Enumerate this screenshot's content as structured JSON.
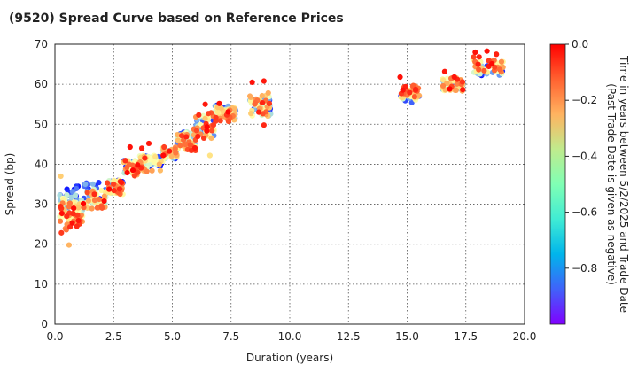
{
  "chart_data": {
    "type": "scatter",
    "title": "(9520)   Spread Curve based on Reference Prices",
    "xlabel": "Duration (years)",
    "ylabel": "Spread (bp)",
    "xlim": [
      0.0,
      20.0
    ],
    "ylim": [
      0,
      70
    ],
    "x_ticks": [
      0.0,
      2.5,
      5.0,
      7.5,
      10.0,
      12.5,
      15.0,
      17.5,
      20.0
    ],
    "x_tick_labels": [
      "0.0",
      "2.5",
      "5.0",
      "7.5",
      "10.0",
      "12.5",
      "15.0",
      "17.5",
      "20.0"
    ],
    "y_ticks": [
      0,
      10,
      20,
      30,
      40,
      50,
      60,
      70
    ],
    "y_tick_labels": [
      "0",
      "10",
      "20",
      "30",
      "40",
      "50",
      "60",
      "70"
    ],
    "grid": true,
    "colorbar": {
      "label_line1": "Time in years between 5/2/2025 and Trade Date",
      "label_line2": "(Past Trade Date is given as negative)",
      "range": [
        -1.0,
        0.0
      ],
      "ticks": [
        0.0,
        -0.2,
        -0.4,
        -0.6,
        -0.8
      ],
      "tick_labels": [
        "0.0",
        "−0.2",
        "−0.4",
        "−0.6",
        "−0.8"
      ],
      "colormap": "rainbow"
    },
    "clusters": [
      {
        "x": [
          0.2,
          0.7
        ],
        "y_new": [
          22,
          30
        ],
        "y_old": [
          30,
          34
        ]
      },
      {
        "x": [
          0.7,
          1.2
        ],
        "y_new": [
          24,
          29
        ],
        "y_old": [
          29,
          35
        ]
      },
      {
        "x": [
          1.2,
          2.2
        ],
        "y_new": [
          28,
          33
        ],
        "y_old": [
          31,
          36
        ]
      },
      {
        "x": [
          2.2,
          2.9
        ],
        "y_new": [
          32,
          36
        ],
        "y_old": [
          33,
          36
        ]
      },
      {
        "x": [
          2.9,
          3.6
        ],
        "y_new": [
          37,
          41
        ],
        "y_old": [
          38,
          41
        ]
      },
      {
        "x": [
          3.6,
          4.6
        ],
        "y_new": [
          38,
          43
        ],
        "y_old": [
          39,
          42
        ]
      },
      {
        "x": [
          4.6,
          5.2
        ],
        "y_new": [
          42,
          45
        ],
        "y_old": [
          41,
          43
        ]
      },
      {
        "x": [
          5.2,
          6.0
        ],
        "y_new": [
          43,
          49
        ],
        "y_old": [
          45,
          48
        ]
      },
      {
        "x": [
          6.0,
          6.8
        ],
        "y_new": [
          46,
          53
        ],
        "y_old": [
          47,
          52
        ]
      },
      {
        "x": [
          6.8,
          7.7
        ],
        "y_new": [
          50,
          54
        ],
        "y_old": [
          52,
          55
        ]
      },
      {
        "x": [
          8.3,
          9.2
        ],
        "y_new": [
          52,
          59
        ],
        "y_old": [
          52,
          56
        ]
      },
      {
        "x": [
          14.7,
          15.6
        ],
        "y_new": [
          57,
          60
        ],
        "y_old": [
          55,
          58
        ]
      },
      {
        "x": [
          16.5,
          17.4
        ],
        "y_new": [
          58,
          62
        ],
        "y_old": [
          59,
          61
        ]
      },
      {
        "x": [
          17.8,
          19.1
        ],
        "y_new": [
          63,
          67
        ],
        "y_old": [
          62,
          65
        ]
      }
    ],
    "outliers": [
      {
        "x": 8.4,
        "y": 60.5,
        "t": -0.02
      },
      {
        "x": 8.9,
        "y": 60.8,
        "t": -0.03
      },
      {
        "x": 8.9,
        "y": 49.8,
        "t": -0.05
      },
      {
        "x": 7.0,
        "y": 55.2,
        "t": -0.02
      },
      {
        "x": 6.4,
        "y": 55.0,
        "t": -0.03
      },
      {
        "x": 6.6,
        "y": 42.2,
        "t": -0.35
      },
      {
        "x": 3.2,
        "y": 44.3,
        "t": -0.02
      },
      {
        "x": 4.0,
        "y": 45.2,
        "t": -0.03
      },
      {
        "x": 3.7,
        "y": 44.0,
        "t": -0.04
      },
      {
        "x": 0.25,
        "y": 37.0,
        "t": -0.3
      },
      {
        "x": 0.6,
        "y": 19.8,
        "t": -0.25
      },
      {
        "x": 14.7,
        "y": 61.8,
        "t": -0.02
      },
      {
        "x": 16.6,
        "y": 63.2,
        "t": -0.03
      },
      {
        "x": 18.4,
        "y": 68.3,
        "t": -0.02
      },
      {
        "x": 17.9,
        "y": 68.0,
        "t": -0.02
      },
      {
        "x": 18.8,
        "y": 67.5,
        "t": -0.04
      }
    ]
  }
}
